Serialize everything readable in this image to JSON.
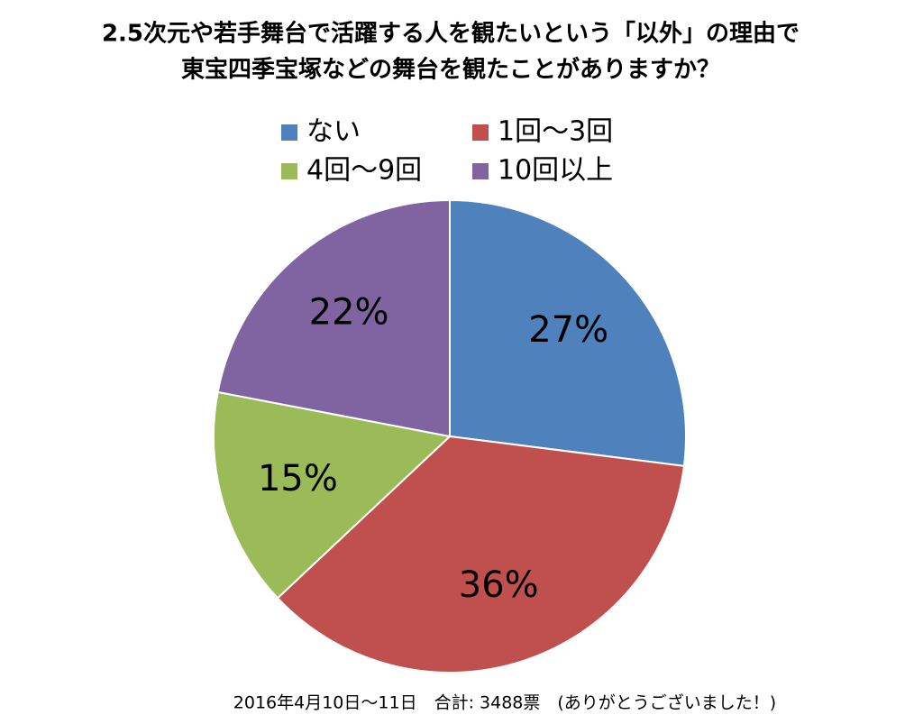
{
  "chart_data": {
    "type": "pie",
    "title": [
      "2.5次元や若手舞台で活躍する人を観たいという「以外」の理由で",
      "東宝四季宝塚などの舞台を観たことがありますか？"
    ],
    "categories": [
      "ない",
      "1回～3回",
      "4回～9回",
      "10回以上"
    ],
    "values": [
      27,
      36,
      15,
      22
    ],
    "value_labels": [
      "27%",
      "36%",
      "15%",
      "22%"
    ],
    "colors": [
      "#4f81bd",
      "#c0504d",
      "#9bbb59",
      "#8064a2"
    ],
    "legend": "top",
    "note": "2016年4月10日～11日　合計: 3488票　(ありがとうございました！)"
  }
}
